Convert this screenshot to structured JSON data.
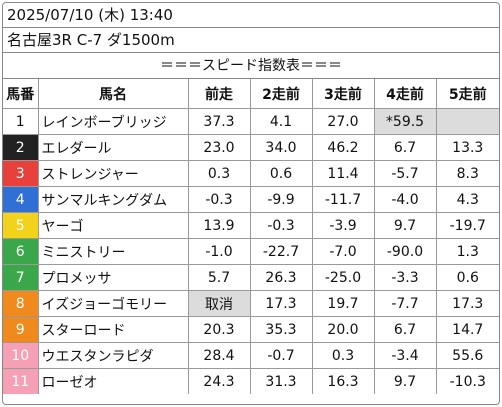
{
  "header": {
    "datetime": "2025/07/10 (木) 13:40",
    "race": "名古屋3R C-7 ダ1500m"
  },
  "title": "＝＝＝スピード指数表＝＝＝",
  "columns": [
    "馬番",
    "馬名",
    "前走",
    "2走前",
    "3走前",
    "4走前",
    "5走前"
  ],
  "colors": {
    "waku1": "#ffffff",
    "waku2": "#222222",
    "waku3": "#e8403a",
    "waku4": "#2f6fd6",
    "waku5": "#f2d21a",
    "waku6": "#3aa84a",
    "waku7": "#f08a1c",
    "waku8": "#f5a0b5",
    "highlight": "#dcdcdc"
  },
  "rows": [
    {
      "num": "1",
      "name": "レインボーブリッジ",
      "v1": "37.3",
      "v2": "4.1",
      "v3": "27.0",
      "v4": "*59.5",
      "v5": "",
      "waku_bg": "#ffffff",
      "waku_fg": "#111111"
    },
    {
      "num": "2",
      "name": "エレダール",
      "v1": "23.0",
      "v2": "34.0",
      "v3": "46.2",
      "v4": "6.7",
      "v5": "13.3",
      "waku_bg": "#222222",
      "waku_fg": "#ffffff"
    },
    {
      "num": "3",
      "name": "ストレンジャー",
      "v1": "0.3",
      "v2": "0.6",
      "v3": "11.4",
      "v4": "-5.7",
      "v5": "8.3",
      "waku_bg": "#e8403a",
      "waku_fg": "#ffffff"
    },
    {
      "num": "4",
      "name": "サンマルキングダム",
      "v1": "-0.3",
      "v2": "-9.9",
      "v3": "-11.7",
      "v4": "-4.0",
      "v5": "4.3",
      "waku_bg": "#2f6fd6",
      "waku_fg": "#ffffff"
    },
    {
      "num": "5",
      "name": "ヤーゴ",
      "v1": "13.9",
      "v2": "-0.3",
      "v3": "-3.9",
      "v4": "9.7",
      "v5": "-19.7",
      "waku_bg": "#f2d21a",
      "waku_fg": "#ffffff"
    },
    {
      "num": "6",
      "name": "ミニストリー",
      "v1": "-1.0",
      "v2": "-22.7",
      "v3": "-7.0",
      "v4": "-90.0",
      "v5": "1.3",
      "waku_bg": "#3aa84a",
      "waku_fg": "#ffffff"
    },
    {
      "num": "7",
      "name": "プロメッサ",
      "v1": "5.7",
      "v2": "26.3",
      "v3": "-25.0",
      "v4": "-3.3",
      "v5": "0.6",
      "waku_bg": "#3aa84a",
      "waku_fg": "#ffffff"
    },
    {
      "num": "8",
      "name": "イズジョーゴモリー",
      "v1": "取消",
      "v2": "17.3",
      "v3": "19.7",
      "v4": "-7.7",
      "v5": "17.3",
      "waku_bg": "#f08a1c",
      "waku_fg": "#ffffff"
    },
    {
      "num": "9",
      "name": "スターロード",
      "v1": "20.3",
      "v2": "35.3",
      "v3": "20.0",
      "v4": "6.7",
      "v5": "14.7",
      "waku_bg": "#f08a1c",
      "waku_fg": "#ffffff"
    },
    {
      "num": "10",
      "name": "ウエスタンラピダ",
      "v1": "28.4",
      "v2": "-0.7",
      "v3": "0.3",
      "v4": "-3.4",
      "v5": "55.6",
      "waku_bg": "#f5a0b5",
      "waku_fg": "#ffffff"
    },
    {
      "num": "11",
      "name": "ローゼオ",
      "v1": "24.3",
      "v2": "31.3",
      "v3": "16.3",
      "v4": "9.7",
      "v5": "-10.3",
      "waku_bg": "#f5a0b5",
      "waku_fg": "#ffffff"
    }
  ],
  "gray_cells": [
    {
      "row": 0,
      "col": "v4"
    },
    {
      "row": 0,
      "col": "v5"
    },
    {
      "row": 7,
      "col": "v1"
    }
  ]
}
